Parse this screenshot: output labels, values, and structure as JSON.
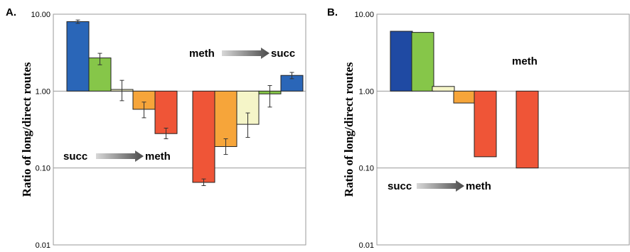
{
  "chart_data": [
    {
      "type": "bar",
      "panel_label": "A.",
      "ylabel": "Ratio of long/direct routes",
      "yscale": "log",
      "ylim": [
        0.01,
        10.0
      ],
      "yticks": [
        0.01,
        0.1,
        1.0,
        10.0
      ],
      "yticklabels": [
        "0.01",
        "0.10",
        "1.00",
        "10.00"
      ],
      "gridlines": "horizontal",
      "baseline": 1.0,
      "groups": [
        {
          "annotation": "succ",
          "annotation_target": "meth",
          "bars": [
            {
              "value": 8.0,
              "err_low": 7.6,
              "err_high": 8.4,
              "color": "#2a66b8"
            },
            {
              "value": 2.7,
              "err_low": 2.2,
              "err_high": 3.1,
              "color": "#86c649"
            },
            {
              "value": 1.05,
              "err_low": 0.75,
              "err_high": 1.38,
              "color": "#f5f5c8"
            },
            {
              "value": 0.58,
              "err_low": 0.45,
              "err_high": 0.72,
              "color": "#f6a53a"
            },
            {
              "value": 0.28,
              "err_low": 0.24,
              "err_high": 0.33,
              "color": "#ef5537"
            }
          ]
        },
        {
          "annotation": "meth",
          "annotation_target": "succ",
          "bars": [
            {
              "value": 0.065,
              "err_low": 0.059,
              "err_high": 0.072,
              "color": "#ef5537"
            },
            {
              "value": 0.19,
              "err_low": 0.15,
              "err_high": 0.24,
              "color": "#f6a53a"
            },
            {
              "value": 0.37,
              "err_low": 0.25,
              "err_high": 0.52,
              "color": "#f5f5c8"
            },
            {
              "value": 0.92,
              "err_low": 0.62,
              "err_high": 1.18,
              "color": "#86c649"
            },
            {
              "value": 1.6,
              "err_low": 1.45,
              "err_high": 1.75,
              "color": "#2a66b8"
            }
          ]
        }
      ]
    },
    {
      "type": "bar",
      "panel_label": "B.",
      "ylabel": "Ratio of long/direct routes",
      "yscale": "log",
      "ylim": [
        0.01,
        10.0
      ],
      "yticks": [
        0.01,
        0.1,
        1.0,
        10.0
      ],
      "yticklabels": [
        "0.01",
        "0.10",
        "1.00",
        "10.00"
      ],
      "gridlines": "horizontal",
      "baseline": 1.0,
      "annotation_top": "meth",
      "annotation_bottom": "succ",
      "annotation_bottom_target": "meth",
      "bars": [
        {
          "value": 6.0,
          "color": "#1f4aa3"
        },
        {
          "value": 5.8,
          "color": "#86c649"
        },
        {
          "value": 1.15,
          "color": "#f5f5c8"
        },
        {
          "value": 0.7,
          "color": "#f6a53a"
        },
        {
          "value": 0.14,
          "color": "#ef5537"
        },
        {
          "value": 0.1,
          "color": "#ef5537"
        }
      ]
    }
  ]
}
